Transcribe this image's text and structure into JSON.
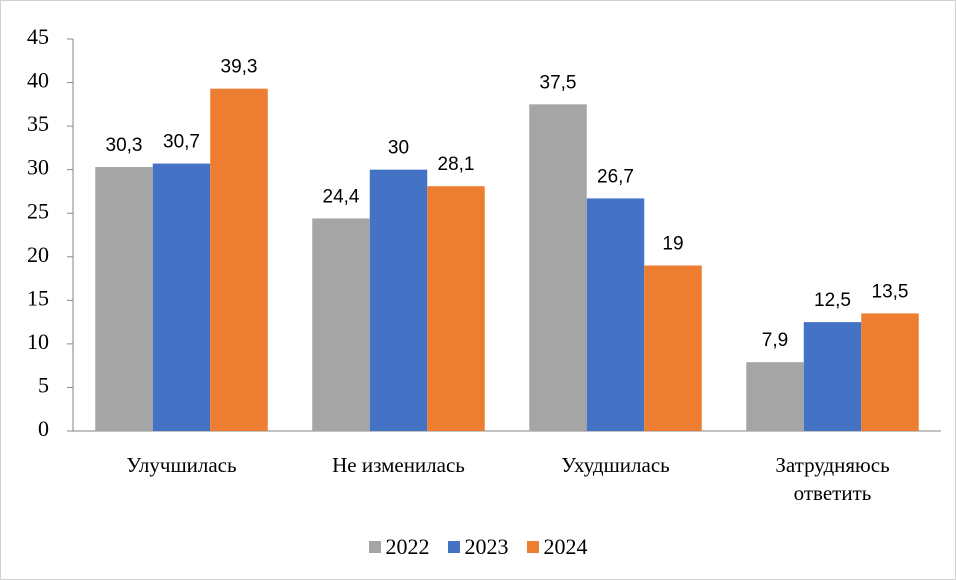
{
  "chart_data": {
    "type": "bar",
    "categories": [
      "Улучшилась",
      "Не изменилась",
      "Ухудшилась",
      "Затрудняюсь ответить"
    ],
    "series": [
      {
        "name": "2022",
        "color": "#a5a5a5",
        "values": [
          30.3,
          24.4,
          37.5,
          7.9
        ],
        "value_labels": [
          "30,3",
          "24,4",
          "37,5",
          "7,9"
        ]
      },
      {
        "name": "2023",
        "color": "#4472c4",
        "values": [
          30.7,
          30,
          26.7,
          12.5
        ],
        "value_labels": [
          "30,7",
          "30",
          "26,7",
          "12,5"
        ]
      },
      {
        "name": "2024",
        "color": "#ed7d31",
        "values": [
          39.3,
          28.1,
          19,
          13.5
        ],
        "value_labels": [
          "39,3",
          "28,1",
          "19",
          "13,5"
        ]
      }
    ],
    "ylim": [
      0,
      45
    ],
    "yticks": [
      0,
      5,
      10,
      15,
      20,
      25,
      30,
      35,
      40,
      45
    ],
    "grid": false,
    "legend": "bottom"
  }
}
